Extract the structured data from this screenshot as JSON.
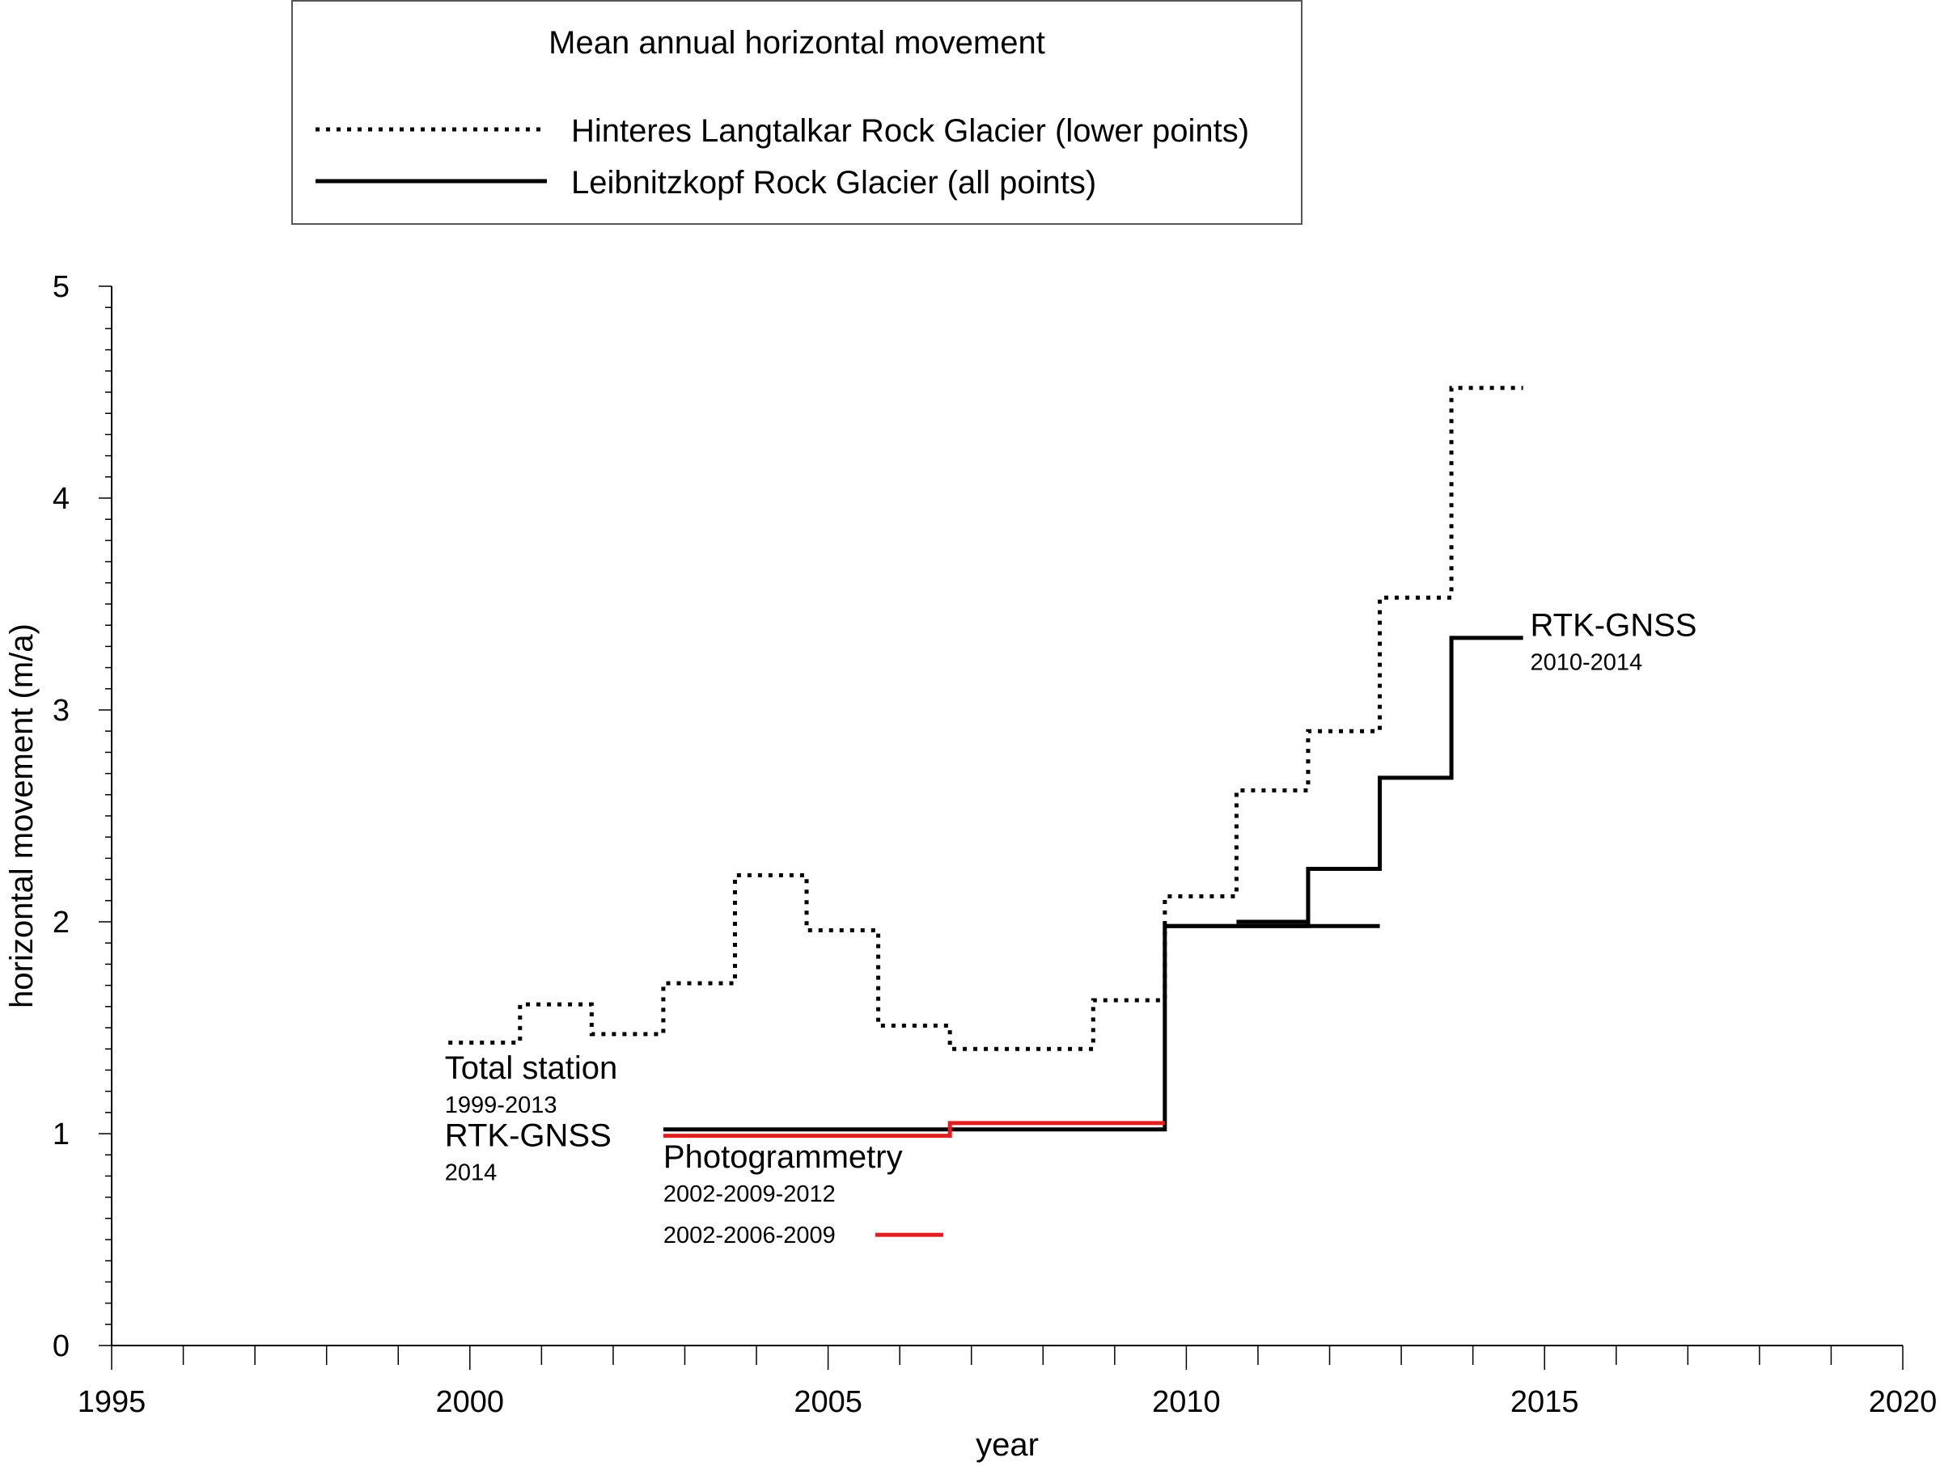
{
  "chart_data": {
    "type": "line",
    "title": "",
    "xlabel": "year",
    "ylabel": "horizontal movement (m/a)",
    "xlim": [
      1995,
      2020
    ],
    "ylim": [
      0,
      5
    ],
    "x_major_ticks": [
      1995,
      2000,
      2005,
      2010,
      2015,
      2020
    ],
    "x_minor_step": 1,
    "y_major_ticks": [
      0,
      1,
      2,
      3,
      4,
      5
    ],
    "y_minor_step": 0.1,
    "grid": false,
    "legend": {
      "title": "Mean annual horizontal movement",
      "placement": "top",
      "entries": [
        {
          "label": "Hinteres Langtalkar Rock Glacier (lower points)",
          "style": "dotted",
          "color": "#000000"
        },
        {
          "label": "Leibnitzkopf Rock Glacier (all points)",
          "style": "solid",
          "color": "#000000"
        }
      ]
    },
    "series": [
      {
        "legend_index": 0,
        "style": "dotted",
        "color": "#000000",
        "steps": [
          {
            "x0": 1999.7,
            "x1": 2000.7,
            "y": 1.43
          },
          {
            "x0": 2000.7,
            "x1": 2001.7,
            "y": 1.61
          },
          {
            "x0": 2001.7,
            "x1": 2002.7,
            "y": 1.47
          },
          {
            "x0": 2002.7,
            "x1": 2003.7,
            "y": 1.71
          },
          {
            "x0": 2003.7,
            "x1": 2004.7,
            "y": 2.22
          },
          {
            "x0": 2004.7,
            "x1": 2005.7,
            "y": 1.96
          },
          {
            "x0": 2005.7,
            "x1": 2006.7,
            "y": 1.51
          },
          {
            "x0": 2006.7,
            "x1": 2008.7,
            "y": 1.4
          },
          {
            "x0": 2008.7,
            "x1": 2009.7,
            "y": 1.63
          },
          {
            "x0": 2009.7,
            "x1": 2010.7,
            "y": 2.12
          },
          {
            "x0": 2010.7,
            "x1": 2011.7,
            "y": 2.62
          },
          {
            "x0": 2011.7,
            "x1": 2012.7,
            "y": 2.9
          },
          {
            "x0": 2012.7,
            "x1": 2013.7,
            "y": 3.53
          },
          {
            "x0": 2013.7,
            "x1": 2014.7,
            "y": 4.52
          }
        ]
      },
      {
        "legend_index": 1,
        "style": "solid",
        "color": "#000000",
        "steps": [
          {
            "x0": 2002.7,
            "x1": 2009.7,
            "y": 1.02
          },
          {
            "x0": 2009.7,
            "x1": 2011.7,
            "y": 1.98
          },
          {
            "x0": 2011.7,
            "x1": 2012.7,
            "y": 2.25
          },
          {
            "x0": 2012.7,
            "x1": 2013.7,
            "y": 2.68
          },
          {
            "x0": 2013.7,
            "x1": 2014.7,
            "y": 3.34
          }
        ]
      },
      {
        "style": "solid",
        "color": "#000000",
        "segments": [
          {
            "x0": 2009.7,
            "x1": 2012.7,
            "y": 1.98
          },
          {
            "x0": 2010.7,
            "x1": 2011.7,
            "y": 2.0
          }
        ]
      },
      {
        "style": "solid",
        "color": "#e02020",
        "steps": [
          {
            "x0": 2002.7,
            "x1": 2006.7,
            "y": 0.99
          },
          {
            "x0": 2006.7,
            "x1": 2009.7,
            "y": 1.05
          }
        ]
      }
    ],
    "annotations": [
      {
        "main": "Total station",
        "sub": "1999-2013",
        "x": 1999.65,
        "y": 1.26
      },
      {
        "main": "RTK-GNSS",
        "sub": "2014",
        "x": 1999.65,
        "y": 0.94
      },
      {
        "main": "Photogrammetry",
        "sub": "2002-2009-2012",
        "x": 2002.7,
        "y": 0.84
      },
      {
        "sub": "2002-2006-2009",
        "x": 2002.7,
        "y": 0.53,
        "swatch_color": "#e02020"
      },
      {
        "main": "RTK-GNSS",
        "sub": "2010-2014",
        "x": 2014.8,
        "y": 3.35
      }
    ]
  }
}
